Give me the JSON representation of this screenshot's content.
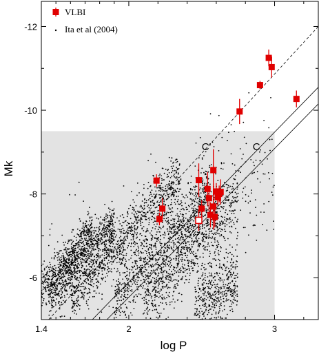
{
  "chart_data": {
    "type": "scatter",
    "xlabel": "log P",
    "ylabel": "Mk",
    "xlim": [
      1.4,
      3.3
    ],
    "ylim": [
      -5.0,
      -12.6
    ],
    "y_axis_inverted": true,
    "x_ticks": [
      1.4,
      2,
      3
    ],
    "x_tick_labels": [
      "1.4",
      "2",
      "3"
    ],
    "y_ticks": [
      -6,
      -8,
      -10,
      -12
    ],
    "y_tick_labels": [
      "-6",
      "-8",
      "-10",
      "-12"
    ],
    "legend_position": "top-left",
    "legend": [
      {
        "label": "VLBI",
        "marker": "red-square-with-errorbar"
      },
      {
        "label": "Ita et al (2004)",
        "marker": "small-black-dot"
      }
    ],
    "shaded_region": {
      "x": [
        1.4,
        3.0
      ],
      "y": [
        -5.0,
        -9.5
      ],
      "color": "#e3e3e3"
    },
    "lines": [
      {
        "label": "C'",
        "style": "dashed",
        "points": [
          [
            1.45,
            -5.0
          ],
          [
            3.3,
            -12.0
          ]
        ],
        "label_at": [
          2.5,
          -9.05
        ]
      },
      {
        "label": "C",
        "style": "solid",
        "points": [
          [
            1.75,
            -5.0
          ],
          [
            3.3,
            -10.55
          ]
        ],
        "label_at": [
          2.85,
          -9.05
        ]
      },
      {
        "label": "",
        "style": "solid",
        "points": [
          [
            1.85,
            -5.0
          ],
          [
            3.3,
            -10.15
          ]
        ]
      }
    ],
    "series": [
      {
        "name": "VLBI",
        "color": "#e00000",
        "points": [
          {
            "x": 2.19,
            "y": -8.32,
            "yerr": 0.15
          },
          {
            "x": 2.23,
            "y": -7.65,
            "yerr": 0.25
          },
          {
            "x": 2.21,
            "y": -7.4,
            "yerr": 0.15
          },
          {
            "x": 2.48,
            "y": -8.33,
            "yerr": 0.4
          },
          {
            "x": 2.5,
            "y": -7.65,
            "yerr": 0.2
          },
          {
            "x": 2.48,
            "y": -7.37,
            "yerr": 0.25,
            "open": true
          },
          {
            "x": 2.54,
            "y": -8.12,
            "yerr": 0.4
          },
          {
            "x": 2.55,
            "y": -7.9,
            "yerr": 0.3
          },
          {
            "x": 2.56,
            "y": -7.5,
            "yerr": 0.3
          },
          {
            "x": 2.58,
            "y": -8.57,
            "yerr": 0.5
          },
          {
            "x": 2.58,
            "y": -7.7,
            "yerr": 0.55
          },
          {
            "x": 2.59,
            "y": -7.45,
            "yerr": 0.25
          },
          {
            "x": 2.6,
            "y": -8.06,
            "yerr": 0.2
          },
          {
            "x": 2.61,
            "y": -7.92,
            "yerr": 0.2
          },
          {
            "x": 2.62,
            "y": -8.0,
            "yerr": 0.2
          },
          {
            "x": 2.63,
            "y": -8.05,
            "yerr": 0.3
          },
          {
            "x": 2.76,
            "y": -9.97,
            "yerr": 0.3
          },
          {
            "x": 2.9,
            "y": -10.6,
            "yerr": 0.1
          },
          {
            "x": 2.96,
            "y": -11.25,
            "yerr": 0.2
          },
          {
            "x": 2.98,
            "y": -11.03,
            "yerr": 0.25
          },
          {
            "x": 3.15,
            "y": -10.27,
            "yerr": 0.2
          }
        ]
      },
      {
        "name": "Ita et al (2004)",
        "color": "#000000",
        "sequences": [
          {
            "x": [
              1.4,
              1.75
            ],
            "slope": -3.9,
            "y_at_first_x": -5.75,
            "scatter": 0.25,
            "count": 520
          },
          {
            "x": [
              1.45,
              1.9
            ],
            "slope": -3.9,
            "y_at_first_x": -5.55,
            "scatter": 0.25,
            "count": 620
          },
          {
            "x": [
              1.6,
              2.35
            ],
            "slope": -3.8,
            "y_at_first_x": -5.55,
            "scatter": 0.3,
            "count": 900
          },
          {
            "x": [
              1.9,
              2.55
            ],
            "slope": -3.9,
            "y_at_first_x": -5.5,
            "scatter": 0.35,
            "count": 750
          },
          {
            "x": [
              2.1,
              2.75
            ],
            "slope": -3.8,
            "y_at_first_x": -5.4,
            "scatter": 0.4,
            "count": 800
          },
          {
            "x": [
              2.45,
              2.75
            ],
            "slope": -2.8,
            "y_at_first_x": -5.2,
            "scatter": 0.45,
            "count": 500
          },
          {
            "x": [
              1.45,
              3.0
            ],
            "slope": -2.0,
            "y_at_first_x": -5.5,
            "scatter": 0.9,
            "count": 500
          }
        ]
      }
    ],
    "line_labels": [
      "C'",
      "C"
    ]
  }
}
